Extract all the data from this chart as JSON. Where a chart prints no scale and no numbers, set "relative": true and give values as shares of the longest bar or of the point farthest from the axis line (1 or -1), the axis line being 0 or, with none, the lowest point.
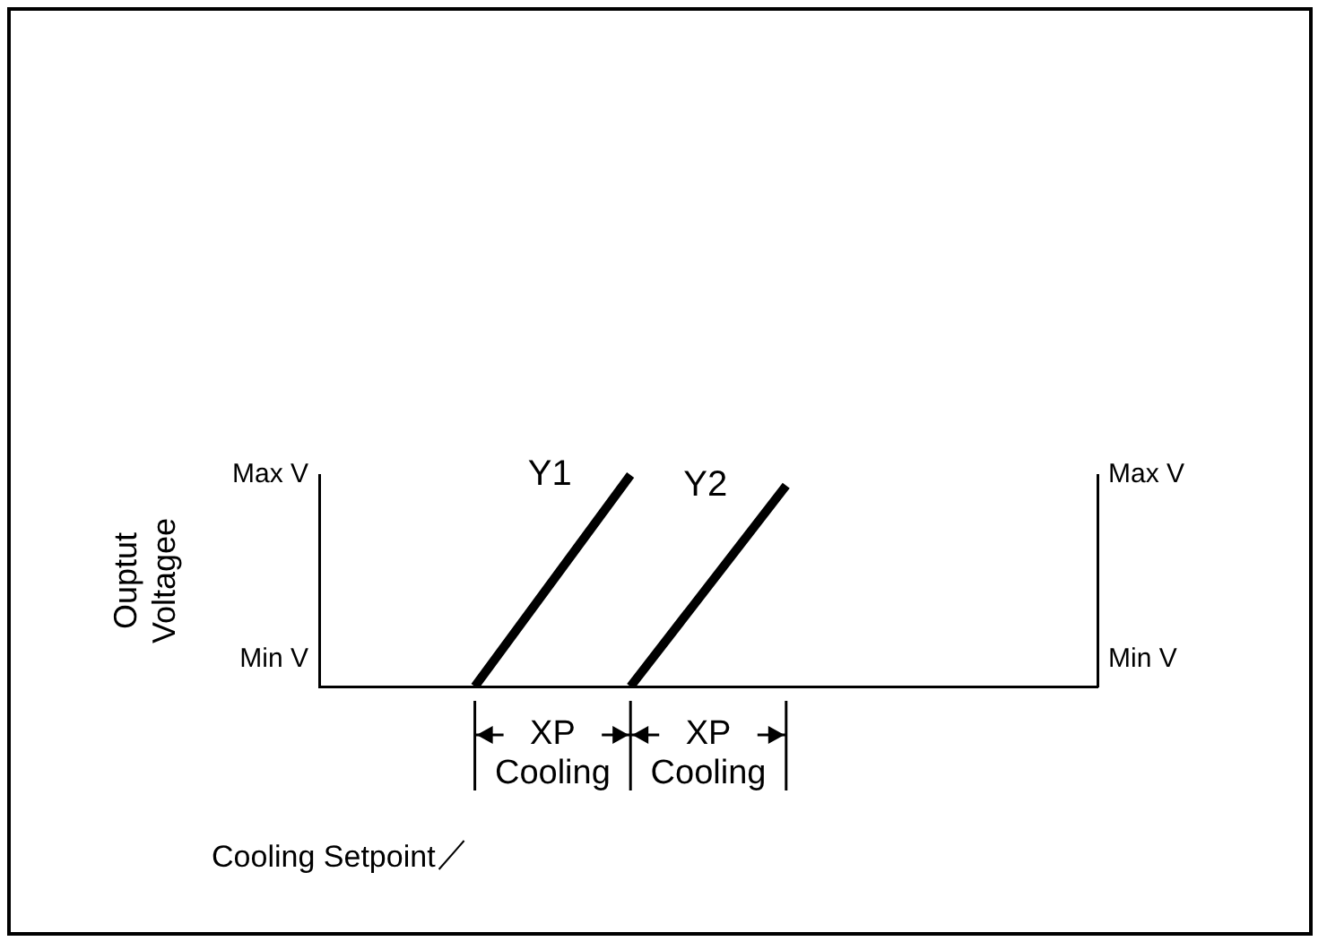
{
  "chart_data": {
    "type": "line",
    "ylabel": "Ouptut Voltagee",
    "relative": true,
    "categories": [
      null,
      null,
      null,
      null,
      null,
      null,
      null,
      null,
      null,
      null,
      null
    ],
    "series": [
      {
        "name": "Y1",
        "color": "#000000",
        "values": [
          null,
          null,
          0,
          null,
          1.0,
          null,
          null,
          null,
          null,
          null,
          null
        ]
      },
      {
        "name": "Y2",
        "color": "#000000",
        "values": [
          null,
          null,
          null,
          null,
          0,
          null,
          0.95,
          null,
          null,
          null,
          null
        ]
      }
    ],
    "grid": false,
    "legend": false,
    "marker": "none",
    "line_style": "solid",
    "annotations": [
      "Max V",
      "Min V",
      "Max V",
      "Min V",
      "XP Cooling",
      "XP Cooling",
      "Cooling Setpoint"
    ]
  }
}
